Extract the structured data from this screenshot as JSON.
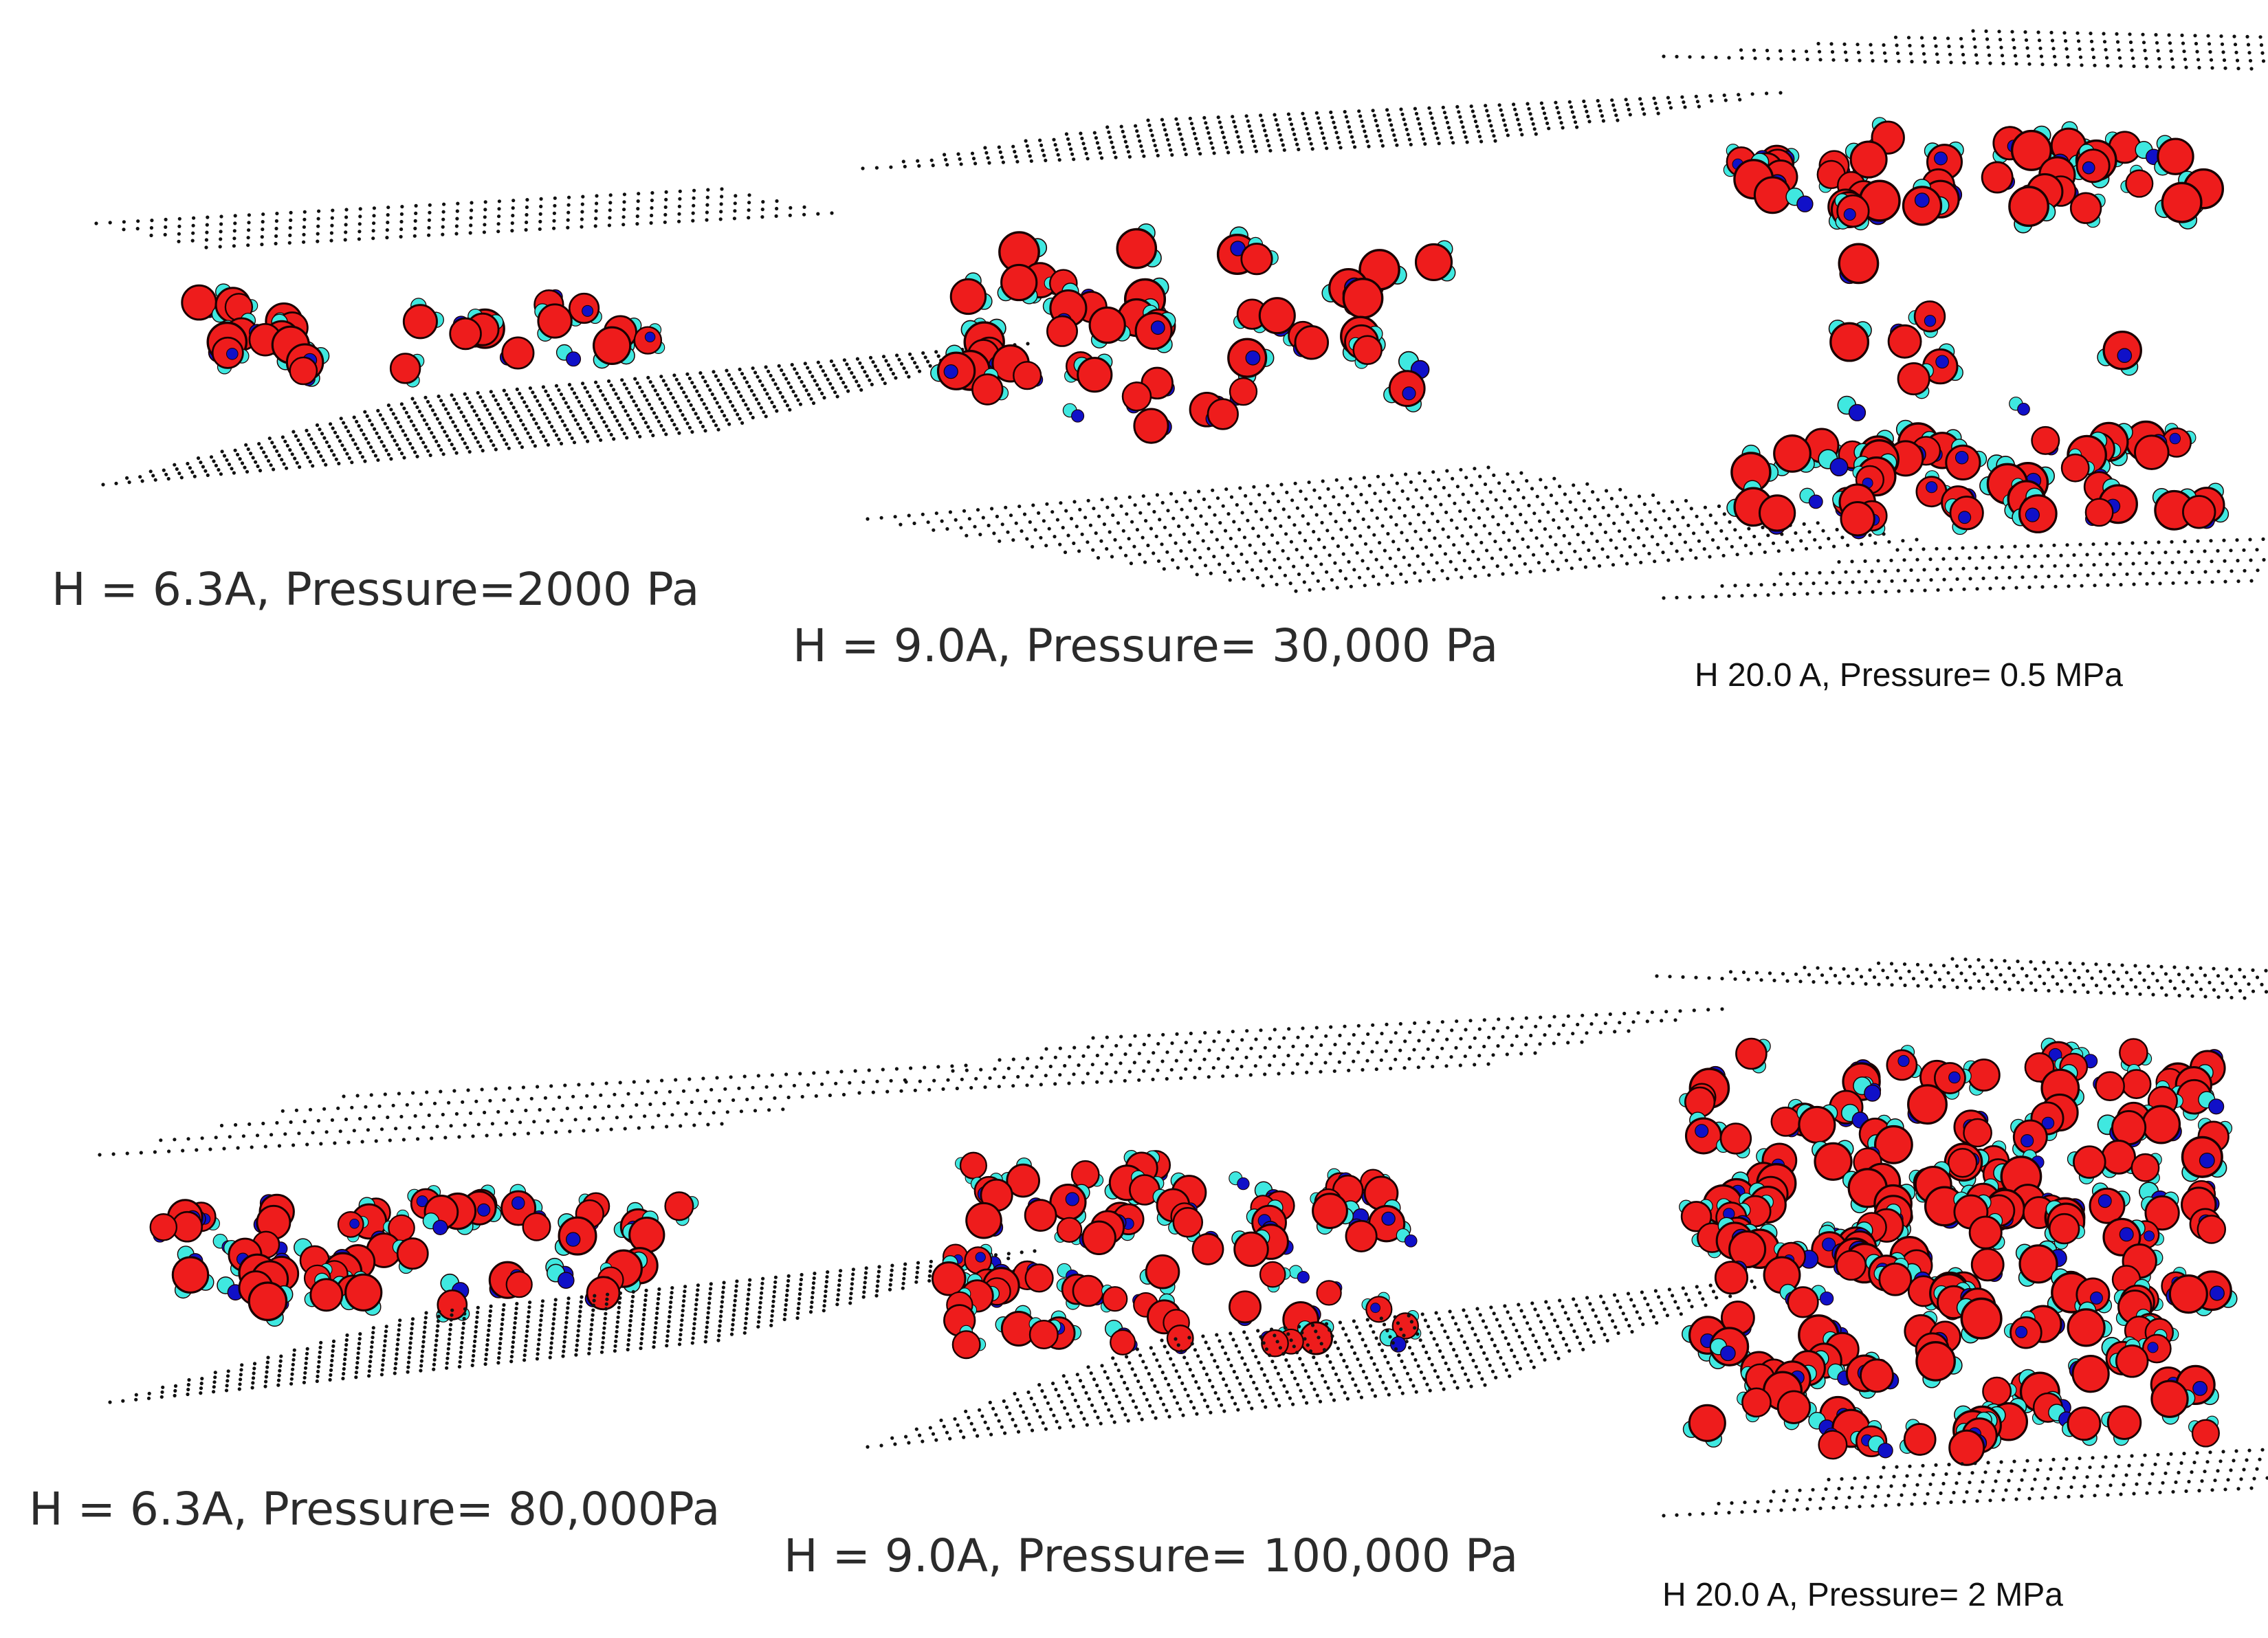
{
  "panels": [
    {
      "caption": "H = 6.3A, Pressure=2000 Pa",
      "style": "large",
      "layers": 1
    },
    {
      "caption": "H = 9.0A, Pressure= 30,000 Pa",
      "style": "large",
      "layers": 1
    },
    {
      "caption": "H 20.0 A, Pressure= 0.5 MPa",
      "style": "small",
      "layers": 2
    },
    {
      "caption": "H = 6.3A, Pressure= 80,000Pa",
      "style": "large",
      "layers": 1
    },
    {
      "caption": "H = 9.0A, Pressure= 100,000 Pa",
      "style": "large",
      "layers": 1
    },
    {
      "caption": "H 20.0 A, Pressure= 2 MPa",
      "style": "small",
      "layers": 1
    }
  ],
  "colors": {
    "oxygen": "#ee1c1c",
    "hydrogen": "#3fe8e0",
    "cation": "#1010c8",
    "outline": "#1a0000",
    "surface": "#111111",
    "caption": "#2b2b2b"
  }
}
